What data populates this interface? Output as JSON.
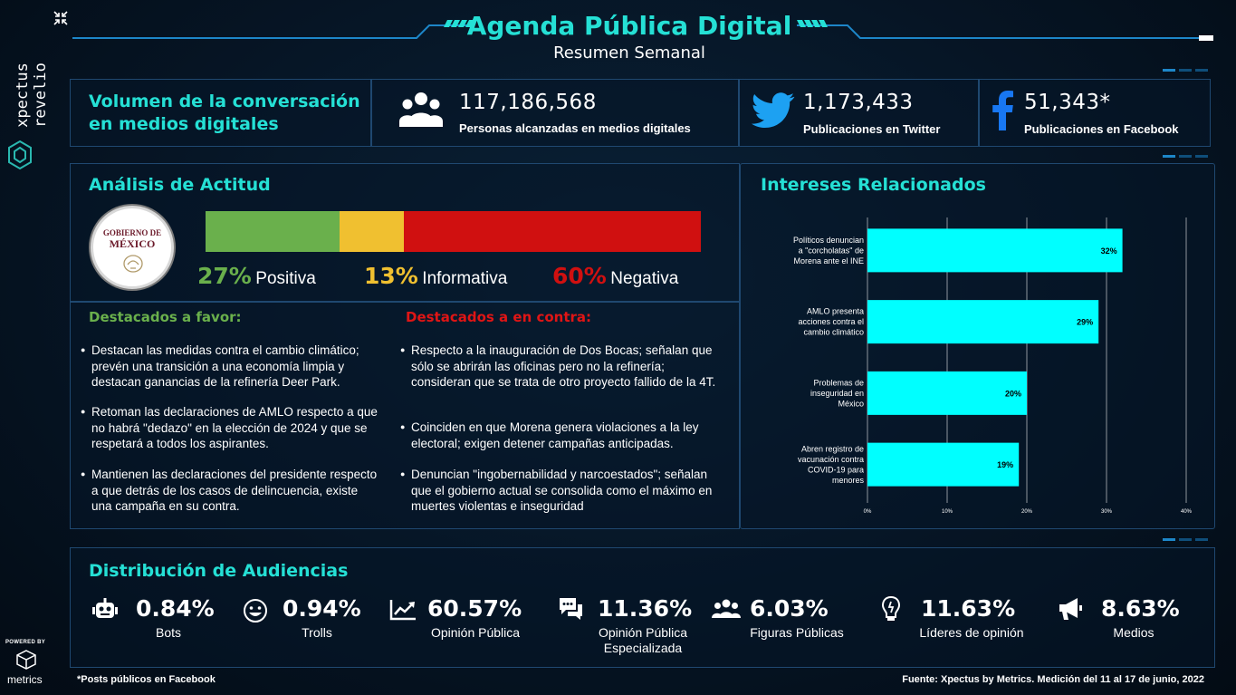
{
  "brand": {
    "vertical": "xpectus revelio",
    "powered_by": "POWERED BY",
    "metrics": "metrics"
  },
  "header": {
    "title": "Agenda Pública Digital",
    "subtitle": "Resumen Semanal"
  },
  "volume": {
    "title_line1": "Volumen de la conversación",
    "title_line2": "en medios digitales",
    "people_value": "117,186,568",
    "people_label": "Personas alcanzadas en medios digitales",
    "twitter_value": "1,173,433",
    "twitter_label": "Publicaciones en Twitter",
    "facebook_value": "51,343*",
    "facebook_label": "Publicaciones en Facebook"
  },
  "attitude": {
    "title": "Análisis de Actitud",
    "seal_line1": "GOBIERNO DE",
    "seal_line2": "MÉXICO",
    "positive": {
      "pct_value": 27,
      "pct": "27%",
      "label": "Positiva",
      "color": "#6ab04c"
    },
    "informative": {
      "pct_value": 13,
      "pct": "13%",
      "label": "Informativa",
      "color": "#f0c030"
    },
    "negative": {
      "pct_value": 60,
      "pct": "60%",
      "label": "Negativa",
      "color": "#d01010"
    },
    "favor_title": "Destacados a favor:",
    "favor": [
      "Destacan las medidas contra el cambio climático; prevén una transición a una economía limpia y destacan ganancias de la refinería Deer Park.",
      "Retoman las declaraciones de AMLO respecto a que no habrá \"dedazo\" en la elección de 2024 y que se respetará a todos los aspirantes.",
      "Mantienen las declaraciones del presidente respecto a que detrás de los casos de delincuencia, existe una campaña en su contra."
    ],
    "contra_title": "Destacados a en contra:",
    "contra": [
      "Respecto a la inauguración de Dos Bocas; señalan que sólo se abrirán las oficinas pero no la refinería; consideran que se trata de otro proyecto fallido de la 4T.",
      "Coinciden en que Morena genera violaciones a la ley electoral; exigen detener campañas anticipadas.",
      "Denuncian \"ingobernabilidad y narcoestados\"; señalan que el gobierno actual se consolida como el máximo en muertes violentas e inseguridad"
    ]
  },
  "interests": {
    "title": "Intereses Relacionados"
  },
  "chart_data": {
    "type": "bar",
    "orientation": "horizontal",
    "categories": [
      "Políticos denuncian a \"corcholatas\" de Morena ante el INE",
      "AMLO presenta acciones contra el cambio climático",
      "Problemas de inseguridad en México",
      "Abren registro de vacunación contra COVID-19 para menores"
    ],
    "values": [
      32,
      29,
      20,
      19
    ],
    "value_labels": [
      "32%",
      "29%",
      "20%",
      "19%"
    ],
    "xlim": [
      0,
      40
    ],
    "ticks": [
      "0%",
      "10%",
      "20%",
      "30%",
      "40%"
    ],
    "bar_color": "#00ffff",
    "grid": true
  },
  "audiences": {
    "title": "Distribución de Audiencias",
    "items": [
      {
        "icon": "robot-icon",
        "value": "0.84%",
        "label": "Bots"
      },
      {
        "icon": "troll-face-icon",
        "value": "0.94%",
        "label": "Trolls"
      },
      {
        "icon": "trend-chart-icon",
        "value": "60.57%",
        "label": "Opinión Pública"
      },
      {
        "icon": "speech-bubbles-icon",
        "value": "11.36%",
        "label": "Opinión Pública Especializada"
      },
      {
        "icon": "group-icon",
        "value": "6.03%",
        "label": "Figuras Públicas"
      },
      {
        "icon": "lightbulb-head-icon",
        "value": "11.63%",
        "label": "Líderes de opinión"
      },
      {
        "icon": "megaphone-icon",
        "value": "8.63%",
        "label": "Medios"
      }
    ]
  },
  "footer": {
    "note": "*Posts públicos en Facebook",
    "source": "Fuente: Xpectus by Metrics. Medición del 11 al 17 de junio, 2022"
  }
}
